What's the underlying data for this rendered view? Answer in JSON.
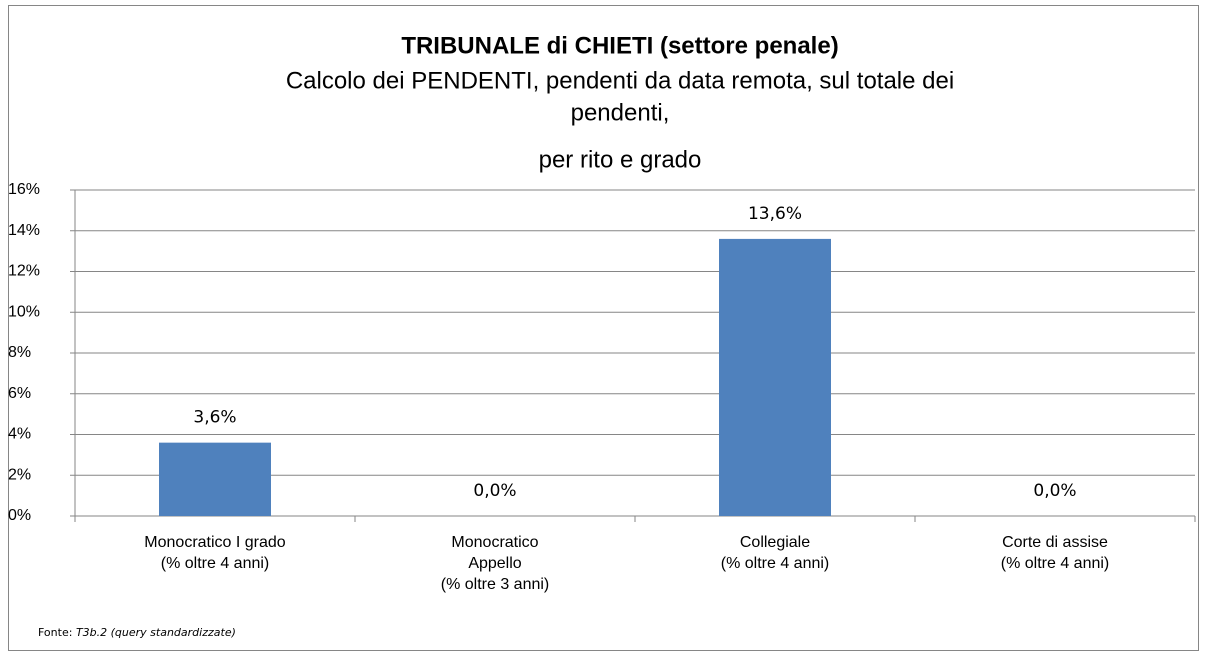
{
  "chart_data": {
    "type": "bar",
    "title": "TRIBUNALE di CHIETI (settore penale)",
    "subtitle": [
      "Calcolo dei PENDENTI, pendenti da data remota, sul totale dei",
      "pendenti,",
      "per rito e grado"
    ],
    "categories": [
      [
        "Monocratico I grado",
        "(% oltre 4 anni)"
      ],
      [
        "Monocratico",
        "Appello",
        "(% oltre 3 anni)"
      ],
      [
        "Collegiale",
        "(% oltre 4 anni)"
      ],
      [
        "Corte di assise",
        "(% oltre 4 anni)"
      ]
    ],
    "values": [
      3.6,
      0,
      13.6,
      0
    ],
    "value_labels": [
      "3,6%",
      "0,0%",
      "13,6%",
      "0,0%"
    ],
    "color": "#4f81bd",
    "ylim": [
      0,
      16
    ],
    "yticks": [
      {
        "value": 0,
        "label": "0%"
      },
      {
        "value": 2,
        "label": "2%"
      },
      {
        "value": 4,
        "label": "4%"
      },
      {
        "value": 6,
        "label": "6%"
      },
      {
        "value": 8,
        "label": "8%"
      },
      {
        "value": 10,
        "label": "10%"
      },
      {
        "value": 12,
        "label": "12%"
      },
      {
        "value": 14,
        "label": "14%"
      },
      {
        "value": 16,
        "label": "16%"
      }
    ],
    "grid": true,
    "source": {
      "label": "Fonte:",
      "text": "T3b.2 (query standardizzate)"
    }
  }
}
